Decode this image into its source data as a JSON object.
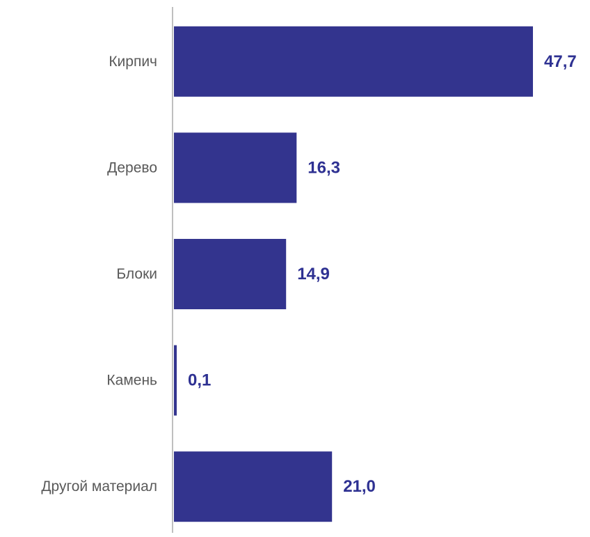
{
  "chart_data": {
    "type": "bar",
    "orientation": "horizontal",
    "categories": [
      "Кирпич",
      "Дерево",
      "Блоки",
      "Камень",
      "Другой материал"
    ],
    "values": [
      47.7,
      16.3,
      14.9,
      0.1,
      21.0
    ],
    "value_labels": [
      "47,7",
      "16,3",
      "14,9",
      "0,1",
      "21,0"
    ],
    "title": "",
    "xlabel": "",
    "ylabel": "",
    "xlim": [
      0,
      47.7
    ],
    "grid": false,
    "legend": "none",
    "colors": {
      "bar": "#33348e",
      "value_label": "#2e3192",
      "category_label": "#595959",
      "axis": "#bfbfbf"
    }
  }
}
